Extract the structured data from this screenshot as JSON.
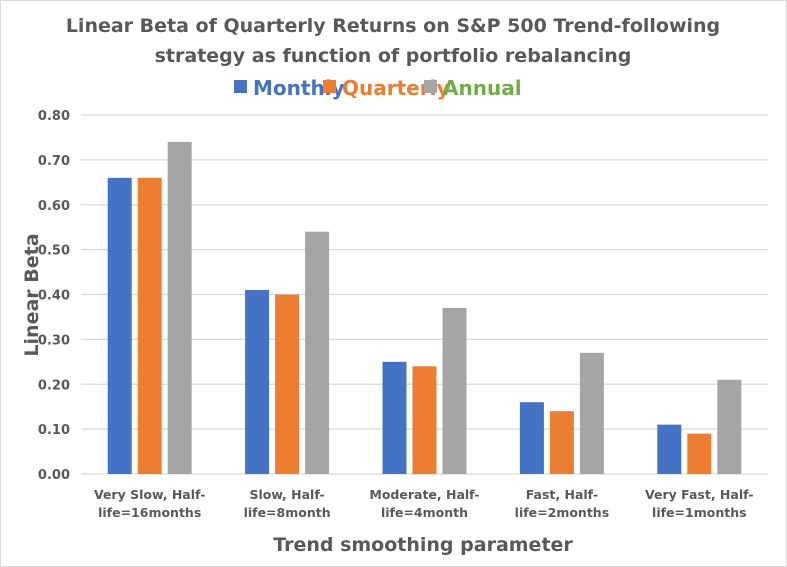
{
  "chart_data": {
    "type": "bar",
    "title_lines": [
      "Linear Beta of Quarterly Returns on S&P 500 Trend-following",
      "strategy as function of portfolio rebalancing"
    ],
    "xlabel": "Trend smoothing parameter",
    "ylabel": "Linear Beta",
    "ylim": [
      0,
      0.8
    ],
    "yticks": [
      "0.00",
      "0.10",
      "0.20",
      "0.30",
      "0.40",
      "0.50",
      "0.60",
      "0.70",
      "0.80"
    ],
    "grid": true,
    "legend_position": "top",
    "categories": [
      [
        "Very Slow, Half-",
        "life=16months"
      ],
      [
        "Slow, Half-",
        "life=8month"
      ],
      [
        "Moderate, Half-",
        "life=4month"
      ],
      [
        "Fast, Half-",
        "life=2months"
      ],
      [
        "Very Fast, Half-",
        "life=1months"
      ]
    ],
    "series": [
      {
        "name": "Monthly",
        "color": "#4472c4",
        "label_color": "#4472c4",
        "values": [
          0.66,
          0.41,
          0.25,
          0.16,
          0.11
        ]
      },
      {
        "name": "Quarterly",
        "color": "#ed7d31",
        "label_color": "#ed7d31",
        "values": [
          0.66,
          0.4,
          0.24,
          0.14,
          0.09
        ]
      },
      {
        "name": "Annual",
        "color": "#a5a5a5",
        "label_color": "#70ad47",
        "values": [
          0.74,
          0.54,
          0.37,
          0.27,
          0.21
        ]
      }
    ]
  }
}
